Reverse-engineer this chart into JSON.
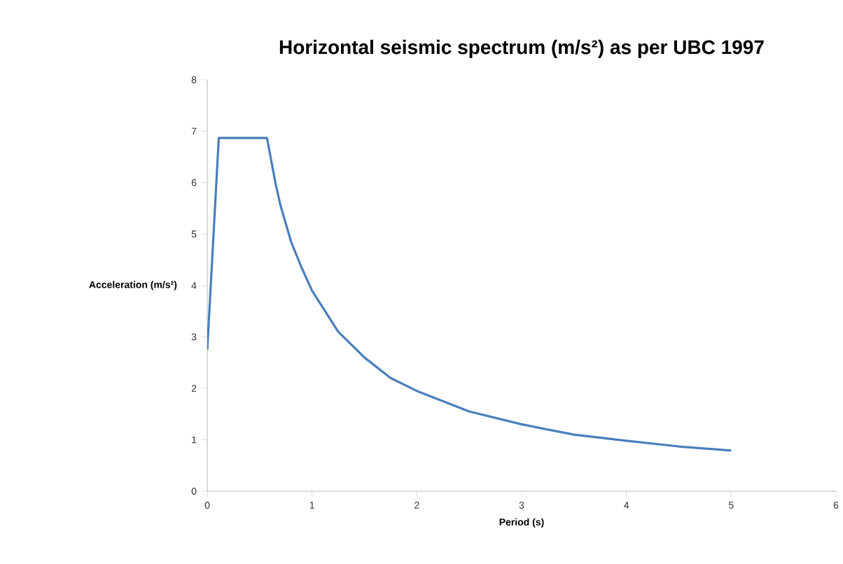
{
  "chart_data": {
    "type": "line",
    "title": "Horizontal seismic spectrum (m/s²) as per UBC 1997",
    "xlabel": "Period (s)",
    "ylabel": "Acceleration (m/s²)",
    "series": [
      {
        "color": "#4a7ebb",
        "x": [
          0,
          0.11,
          0.57,
          0.65,
          0.7,
          0.8,
          0.9,
          1,
          1.25,
          1.5,
          1.75,
          2,
          2.5,
          3,
          3.5,
          4,
          4.5,
          5
        ],
        "values": [
          2.75,
          6.87,
          6.87,
          6.0,
          5.55,
          4.85,
          4.35,
          3.9,
          3.1,
          2.6,
          2.2,
          1.95,
          1.55,
          1.3,
          1.1,
          0.98,
          0.87,
          0.79
        ]
      }
    ],
    "xlim": [
      0,
      6
    ],
    "ylim": [
      0,
      8
    ],
    "xticks": [
      0,
      1,
      2,
      3,
      4,
      5,
      6
    ],
    "yticks": [
      0,
      1,
      2,
      3,
      4,
      5,
      6,
      7,
      8
    ],
    "grid": false,
    "marker": "none",
    "line_style": "solid"
  }
}
